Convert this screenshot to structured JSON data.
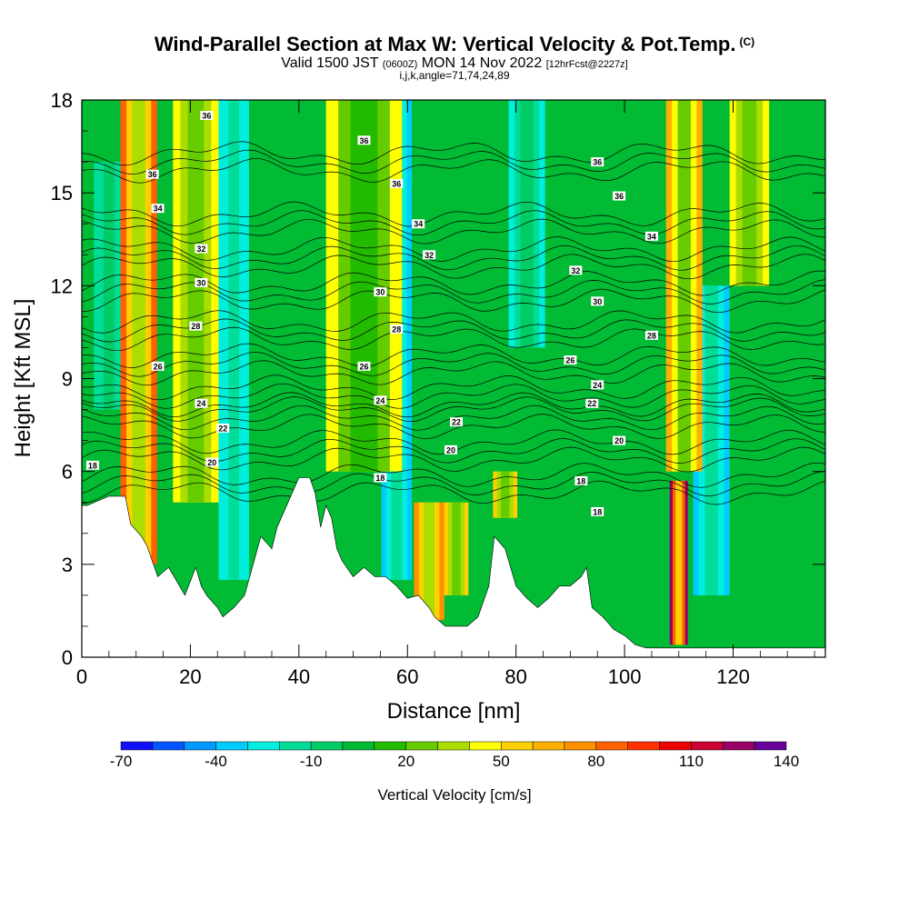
{
  "title": {
    "main": "Wind-Parallel Section at Max W: Vertical Velocity & Pot.Temp.",
    "copyright": "(C)",
    "valid_prefix": "Valid 1500 JST",
    "valid_utc": "(0600Z)",
    "valid_date": "MON 14 Nov 2022",
    "forecast": "[12hrFcst@2227z]",
    "indices": "i,j,k,angle=71,74,24,89"
  },
  "chart_data": {
    "type": "heatmap",
    "xlabel": "Distance [nm]",
    "ylabel": "Height [Kft MSL]",
    "xlim": [
      0,
      137
    ],
    "ylim": [
      0,
      18
    ],
    "xticks": [
      0,
      20,
      40,
      60,
      80,
      100,
      120
    ],
    "yticks": [
      0,
      3,
      6,
      9,
      12,
      15,
      18
    ],
    "colorbar": {
      "title": "Vertical Velocity [cm/s]",
      "labels": [
        "-70",
        "-40",
        "-10",
        "20",
        "50",
        "80",
        "110",
        "140"
      ],
      "label_values": [
        -70,
        -40,
        -10,
        20,
        50,
        80,
        110,
        140
      ],
      "levels": [
        -70,
        -60,
        -50,
        -40,
        -30,
        -20,
        -10,
        0,
        10,
        20,
        30,
        40,
        50,
        60,
        70,
        80,
        90,
        100,
        110,
        120,
        130,
        140
      ],
      "colors": [
        "#1010ff",
        "#0055ff",
        "#0099ff",
        "#00ccff",
        "#00eedd",
        "#00dd99",
        "#00cc66",
        "#00bb33",
        "#22bb00",
        "#66cc00",
        "#aadd00",
        "#ffff00",
        "#ffd000",
        "#ffb000",
        "#ff9000",
        "#ff6000",
        "#ff3000",
        "#ee0000",
        "#cc0033",
        "#990066",
        "#660099"
      ]
    },
    "terrain_kft": {
      "x": [
        0,
        1,
        5,
        8,
        9,
        11,
        12,
        14,
        16,
        18,
        19,
        21,
        22,
        23,
        25,
        26,
        28,
        30,
        33,
        35,
        36,
        38,
        40,
        42,
        43,
        44,
        45,
        46,
        47,
        48,
        50,
        52,
        54,
        56,
        58,
        60,
        62,
        64,
        65,
        67,
        69,
        71,
        73,
        75,
        76,
        78,
        80,
        82,
        84,
        86,
        88,
        90,
        92,
        93,
        94,
        96,
        98,
        100,
        102,
        104,
        107,
        110,
        120,
        130,
        137
      ],
      "y": [
        4.9,
        4.9,
        5.2,
        5.2,
        4.3,
        3.9,
        3.6,
        2.6,
        2.9,
        2.3,
        2.0,
        2.9,
        2.3,
        2.0,
        1.6,
        1.3,
        1.6,
        2.0,
        3.9,
        3.5,
        4.2,
        5.0,
        5.8,
        5.8,
        5.3,
        4.2,
        4.9,
        4.5,
        3.5,
        3.1,
        2.6,
        2.9,
        2.6,
        2.6,
        2.3,
        1.9,
        2.0,
        1.6,
        1.3,
        1.0,
        1.0,
        1.0,
        1.3,
        2.3,
        3.9,
        3.5,
        2.3,
        1.9,
        1.6,
        1.9,
        2.3,
        2.3,
        2.6,
        2.9,
        1.6,
        1.3,
        0.9,
        0.7,
        0.4,
        0.3,
        0.3,
        0.3,
        0.3,
        0.3,
        0.3
      ]
    },
    "updraft_bands": [
      {
        "x": 10.5,
        "ymin": 3.0,
        "ymax": 18,
        "width_nm": 1.2,
        "peak_cm_s": 80
      },
      {
        "x": 21,
        "ymin": 5.0,
        "ymax": 18,
        "width_nm": 1.5,
        "peak_cm_s": 45
      },
      {
        "x": 52,
        "ymin": 6.0,
        "ymax": 18,
        "width_nm": 2.5,
        "peak_cm_s": 40
      },
      {
        "x": 64,
        "ymin": 1.2,
        "ymax": 5,
        "width_nm": 1.0,
        "peak_cm_s": 75
      },
      {
        "x": 69,
        "ymin": 2.0,
        "ymax": 5,
        "width_nm": 0.8,
        "peak_cm_s": 50
      },
      {
        "x": 78,
        "ymin": 4.5,
        "ymax": 6,
        "width_nm": 0.8,
        "peak_cm_s": 50
      },
      {
        "x": 110,
        "ymin": 0.4,
        "ymax": 5.7,
        "width_nm": 0.6,
        "peak_cm_s": 125
      },
      {
        "x": 111,
        "ymin": 6.0,
        "ymax": 18,
        "width_nm": 1.2,
        "peak_cm_s": 65
      },
      {
        "x": 123,
        "ymin": 12,
        "ymax": 18,
        "width_nm": 1.3,
        "peak_cm_s": 45
      }
    ],
    "downdraft_bands": [
      {
        "x": 5,
        "ymin": 8,
        "ymax": 16,
        "width_nm": 1.0,
        "peak_cm_s": -15
      },
      {
        "x": 28,
        "ymin": 2.5,
        "ymax": 18,
        "width_nm": 1.0,
        "peak_cm_s": -30
      },
      {
        "x": 58,
        "ymin": 2.5,
        "ymax": 18,
        "width_nm": 1.0,
        "peak_cm_s": -35
      },
      {
        "x": 82,
        "ymin": 10,
        "ymax": 18,
        "width_nm": 1.2,
        "peak_cm_s": -25
      },
      {
        "x": 116,
        "ymin": 2.0,
        "ymax": 12,
        "width_nm": 1.2,
        "peak_cm_s": -35
      }
    ],
    "theta_contour_labels": [
      {
        "value": "36",
        "x": 23,
        "y": 17.5
      },
      {
        "value": "36",
        "x": 52,
        "y": 16.7
      },
      {
        "value": "36",
        "x": 95,
        "y": 16.0
      },
      {
        "value": "36",
        "x": 13,
        "y": 15.6
      },
      {
        "value": "36",
        "x": 58,
        "y": 15.3
      },
      {
        "value": "36",
        "x": 99,
        "y": 14.9
      },
      {
        "value": "34",
        "x": 14,
        "y": 14.5
      },
      {
        "value": "34",
        "x": 62,
        "y": 14.0
      },
      {
        "value": "34",
        "x": 105,
        "y": 13.6
      },
      {
        "value": "32",
        "x": 22,
        "y": 13.2
      },
      {
        "value": "32",
        "x": 64,
        "y": 13.0
      },
      {
        "value": "32",
        "x": 91,
        "y": 12.5
      },
      {
        "value": "30",
        "x": 22,
        "y": 12.1
      },
      {
        "value": "30",
        "x": 55,
        "y": 11.8
      },
      {
        "value": "30",
        "x": 95,
        "y": 11.5
      },
      {
        "value": "28",
        "x": 21,
        "y": 10.7
      },
      {
        "value": "28",
        "x": 58,
        "y": 10.6
      },
      {
        "value": "28",
        "x": 105,
        "y": 10.4
      },
      {
        "value": "26",
        "x": 14,
        "y": 9.4
      },
      {
        "value": "26",
        "x": 52,
        "y": 9.4
      },
      {
        "value": "26",
        "x": 90,
        "y": 9.6
      },
      {
        "value": "24",
        "x": 22,
        "y": 8.2
      },
      {
        "value": "24",
        "x": 55,
        "y": 8.3
      },
      {
        "value": "24",
        "x": 95,
        "y": 8.8
      },
      {
        "value": "22",
        "x": 26,
        "y": 7.4
      },
      {
        "value": "22",
        "x": 69,
        "y": 7.6
      },
      {
        "value": "22",
        "x": 94,
        "y": 8.2
      },
      {
        "value": "20",
        "x": 24,
        "y": 6.3
      },
      {
        "value": "20",
        "x": 68,
        "y": 6.7
      },
      {
        "value": "20",
        "x": 99,
        "y": 7.0
      },
      {
        "value": "18",
        "x": 2,
        "y": 6.2
      },
      {
        "value": "18",
        "x": 55,
        "y": 5.8
      },
      {
        "value": "18",
        "x": 92,
        "y": 5.7
      },
      {
        "value": "18",
        "x": 95,
        "y": 4.7
      }
    ]
  }
}
